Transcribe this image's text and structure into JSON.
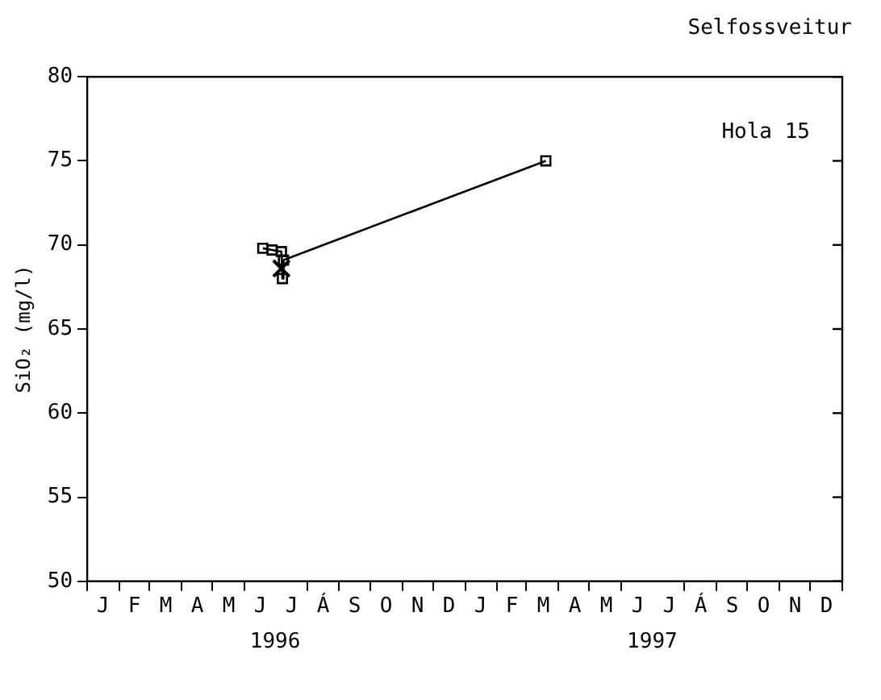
{
  "chart_data": {
    "type": "line",
    "title": "Selfossveitur",
    "ylabel": "SiO₂ (mg/l)",
    "annotations": [
      "Hola 15",
      "J",
      "F",
      "M",
      "A",
      "M",
      "J",
      "J",
      "Á",
      "S",
      "O",
      "N",
      "D",
      "J",
      "F",
      "M",
      "A",
      "M",
      "J",
      "J",
      "Á",
      "S",
      "O",
      "N",
      "D"
    ],
    "series": [
      {
        "color": "#000000",
        "marker": "square",
        "line_style": "solid",
        "x": [
          "1996-06-19",
          "1996-06-28",
          "1996-07-07",
          "1996-07-08",
          "1996-07-09",
          "1997-03-20"
        ],
        "values": [
          69.8,
          69.7,
          69.6,
          68.0,
          69.1,
          75.0
        ]
      },
      {
        "type": "scatter",
        "color": "#000000",
        "marker": "cross",
        "x": [
          "1996-07-07"
        ],
        "values": [
          68.6
        ]
      }
    ],
    "xlim": [
      "1996-01-01",
      "1998-01-01"
    ],
    "xticks": [
      {
        "value": "1996-01-01",
        "label": null
      },
      {
        "value": "1996-02-01",
        "label": null
      },
      {
        "value": "1996-03-01",
        "label": null
      },
      {
        "value": "1996-04-01",
        "label": null
      },
      {
        "value": "1996-05-01",
        "label": null
      },
      {
        "value": "1996-06-01",
        "label": null
      },
      {
        "value": "1996-07-01",
        "label": "1996"
      },
      {
        "value": "1996-08-01",
        "label": null
      },
      {
        "value": "1996-09-01",
        "label": null
      },
      {
        "value": "1996-10-01",
        "label": null
      },
      {
        "value": "1996-11-01",
        "label": null
      },
      {
        "value": "1996-12-01",
        "label": null
      },
      {
        "value": "1997-01-01",
        "label": null
      },
      {
        "value": "1997-02-01",
        "label": null
      },
      {
        "value": "1997-03-01",
        "label": null
      },
      {
        "value": "1997-04-01",
        "label": null
      },
      {
        "value": "1997-05-01",
        "label": null
      },
      {
        "value": "1997-06-01",
        "label": null
      },
      {
        "value": "1997-07-01",
        "label": "1997"
      },
      {
        "value": "1997-08-01",
        "label": null
      },
      {
        "value": "1997-09-01",
        "label": null
      },
      {
        "value": "1997-10-01",
        "label": null
      },
      {
        "value": "1997-11-01",
        "label": null
      },
      {
        "value": "1997-12-01",
        "label": null
      },
      {
        "value": "1998-01-01",
        "label": null
      }
    ],
    "ylim": [
      50,
      80
    ],
    "yticks": [
      50,
      55,
      60,
      65,
      70,
      75,
      80
    ],
    "grid": false,
    "legend": false
  }
}
